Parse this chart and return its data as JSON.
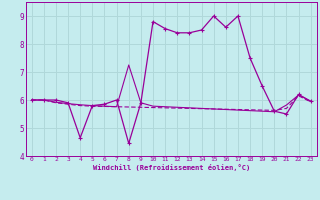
{
  "title": "",
  "xlabel": "Windchill (Refroidissement éolien,°C)",
  "bg_color": "#c5ecee",
  "grid_color": "#b0d8da",
  "line_color": "#990099",
  "xlim": [
    -0.5,
    23.5
  ],
  "ylim": [
    4,
    9.5
  ],
  "yticks": [
    4,
    5,
    6,
    7,
    8,
    9
  ],
  "xticks": [
    0,
    1,
    2,
    3,
    4,
    5,
    6,
    7,
    8,
    9,
    10,
    11,
    12,
    13,
    14,
    15,
    16,
    17,
    18,
    19,
    20,
    21,
    22,
    23
  ],
  "series1_x": [
    0,
    1,
    2,
    3,
    4,
    5,
    6,
    7,
    8,
    9,
    10,
    11,
    12,
    13,
    14,
    15,
    16,
    17,
    18,
    19,
    20,
    21,
    22,
    23
  ],
  "series1_y": [
    6.0,
    6.0,
    6.0,
    5.9,
    4.65,
    5.8,
    5.85,
    6.0,
    4.45,
    5.9,
    8.8,
    8.55,
    8.4,
    8.4,
    8.5,
    9.0,
    8.6,
    9.0,
    7.5,
    6.5,
    5.6,
    5.5,
    6.2,
    5.95
  ],
  "series2_x": [
    0,
    1,
    2,
    3,
    4,
    5,
    6,
    7,
    8,
    9,
    10,
    11,
    12,
    13,
    14,
    15,
    16,
    17,
    18,
    19,
    20,
    21,
    22,
    23
  ],
  "series2_y": [
    6.0,
    6.0,
    5.9,
    5.85,
    5.8,
    5.78,
    5.77,
    5.76,
    5.75,
    5.74,
    5.73,
    5.72,
    5.71,
    5.7,
    5.69,
    5.68,
    5.67,
    5.66,
    5.65,
    5.64,
    5.63,
    5.7,
    6.15,
    5.93
  ],
  "series3_x": [
    0,
    1,
    2,
    3,
    4,
    5,
    6,
    7,
    8,
    9,
    10,
    11,
    12,
    13,
    14,
    15,
    16,
    17,
    18,
    19,
    20,
    21,
    22,
    23
  ],
  "series3_y": [
    6.0,
    6.0,
    5.92,
    5.87,
    5.83,
    5.8,
    5.78,
    5.76,
    7.25,
    5.9,
    5.78,
    5.76,
    5.74,
    5.72,
    5.7,
    5.68,
    5.66,
    5.64,
    5.62,
    5.6,
    5.58,
    5.82,
    6.18,
    5.96
  ]
}
